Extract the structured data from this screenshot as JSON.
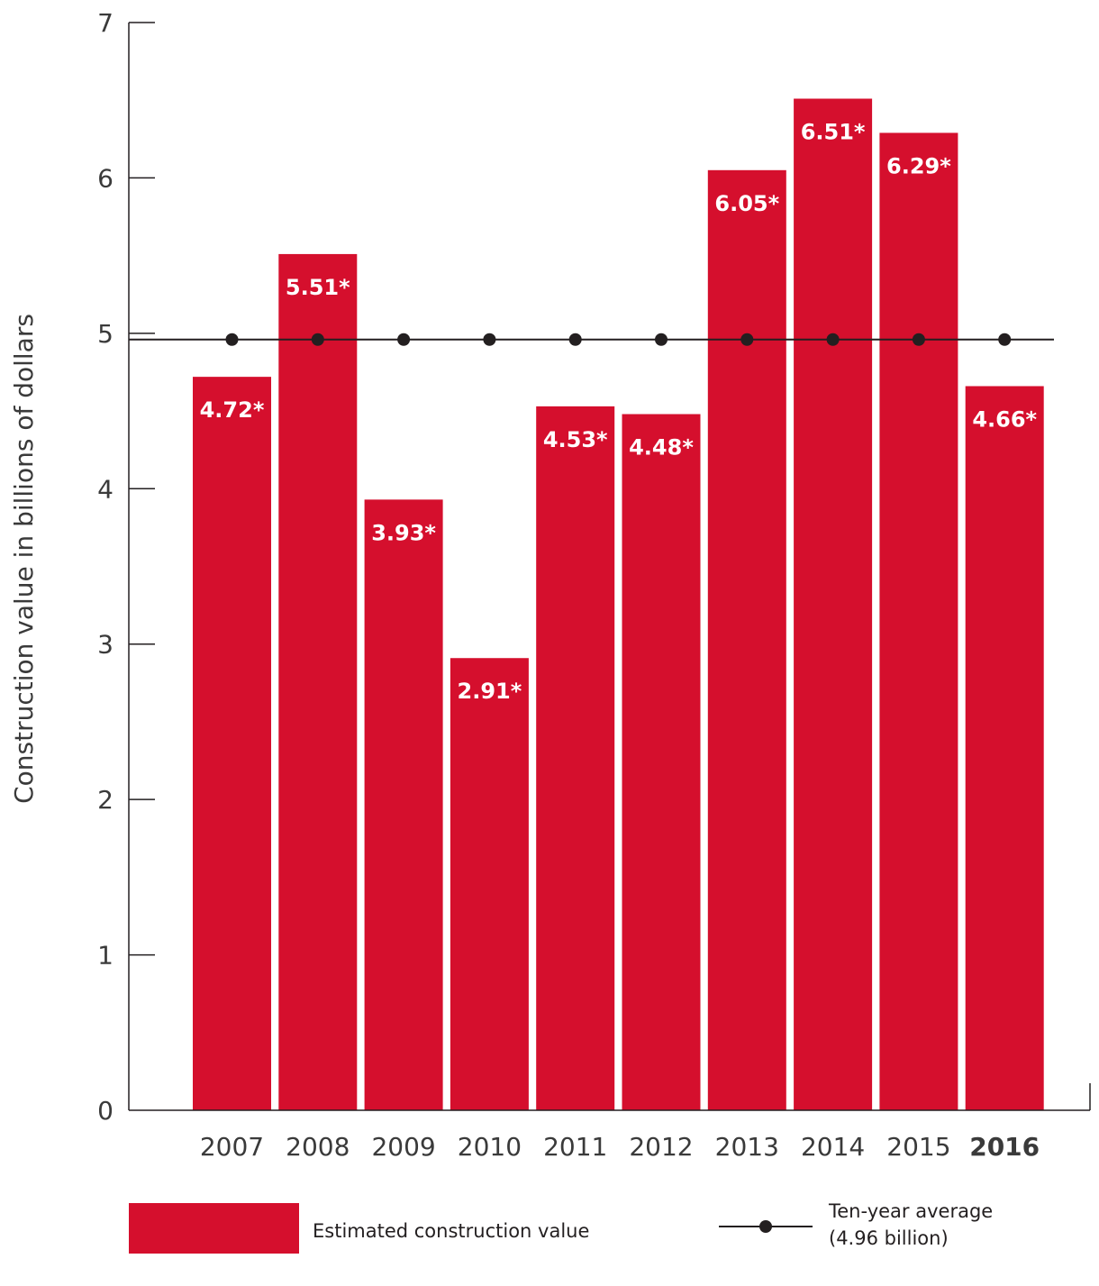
{
  "chart_data": {
    "type": "bar",
    "categories": [
      "2007",
      "2008",
      "2009",
      "2010",
      "2011",
      "2012",
      "2013",
      "2014",
      "2015",
      "2016"
    ],
    "highlight_category": "2016",
    "series": [
      {
        "name": "Estimated construction value",
        "values": [
          4.72,
          5.51,
          3.93,
          2.91,
          4.53,
          4.48,
          6.05,
          6.51,
          6.29,
          4.66
        ],
        "labels": [
          "4.72*",
          "5.51*",
          "3.93*",
          "2.91*",
          "4.53*",
          "4.48*",
          "6.05*",
          "6.51*",
          "6.29*",
          "4.66*"
        ],
        "color": "#d50f2d"
      }
    ],
    "reference_line": {
      "name": "Ten-year average",
      "detail": "(4.96 billion)",
      "value": 4.96,
      "color": "#231f20"
    },
    "ylabel": "Construction value in billions of  dollars",
    "ylim": [
      0,
      7
    ],
    "yticks": [
      0,
      1,
      2,
      3,
      4,
      5,
      6,
      7
    ],
    "grid": false,
    "legend_position": "bottom"
  }
}
